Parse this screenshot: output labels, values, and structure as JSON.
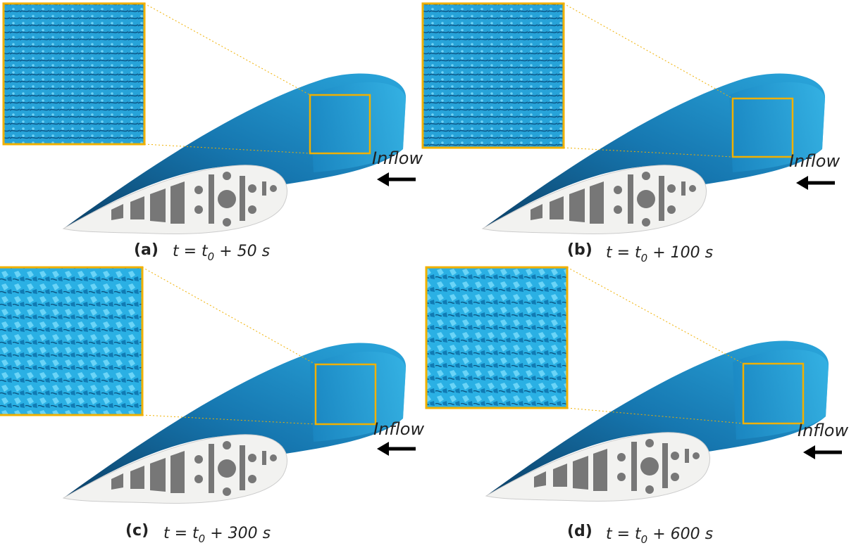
{
  "panels": [
    {
      "label": "(a)",
      "caption": {
        "prefix": "t = t",
        "subscript": "0",
        "suffix": " + 50 s"
      },
      "inflow": "Inflow"
    },
    {
      "label": "(b)",
      "caption": {
        "prefix": "t = t",
        "subscript": "0",
        "suffix": " + 100 s"
      },
      "inflow": "Inflow"
    },
    {
      "label": "(c)",
      "caption": {
        "prefix": "t = t",
        "subscript": "0",
        "suffix": " + 300 s"
      },
      "inflow": "Inflow"
    },
    {
      "label": "(d)",
      "caption": {
        "prefix": "t = t",
        "subscript": "0",
        "suffix": " + 600 s"
      },
      "inflow": "Inflow"
    }
  ]
}
